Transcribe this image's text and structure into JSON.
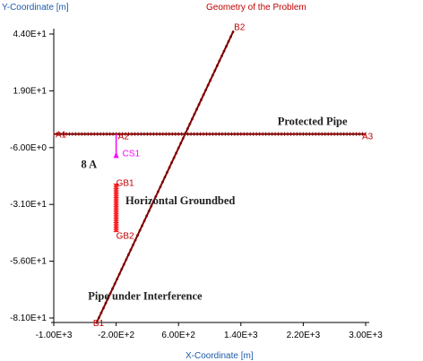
{
  "chart_data": {
    "type": "line",
    "title": "Geometry of the Problem",
    "xlabel": "X-Coordinate [m]",
    "ylabel": "Y-Coordinate [m]",
    "xlim": [
      -1000,
      3000
    ],
    "ylim": [
      -81,
      44
    ],
    "x_ticks": [
      -1000,
      -200,
      600,
      1400,
      2200,
      3000
    ],
    "x_tick_labels": [
      "-1.00E+3",
      "-2.00E+2",
      "6.00E+2",
      "1.40E+3",
      "2.20E+3",
      "3.00E+3"
    ],
    "y_ticks": [
      44,
      19,
      -6,
      -31,
      -56,
      -81
    ],
    "y_tick_labels": [
      "4.40E+1",
      "1.90E+1",
      "-6.00E+0",
      "-3.10E+1",
      "-5.60E+1",
      "-8.10E+1"
    ],
    "grid": false,
    "colors": {
      "pipe": "#800000",
      "groundbed": "#ff2020",
      "current_source": "#ff00ff",
      "text_red": "#c00000",
      "text_blue": "#1e5aa8",
      "text_dark": "#202020"
    },
    "series": [
      {
        "name": "Protected Pipe",
        "points": [
          [
            -1000,
            0
          ],
          [
            -200,
            0
          ],
          [
            3000,
            0
          ]
        ]
      },
      {
        "name": "Pipe under Interference",
        "points": [
          [
            -450,
            -83
          ],
          [
            1300,
            45
          ]
        ]
      },
      {
        "name": "Horizontal Groundbed",
        "points": [
          [
            -200,
            -22
          ],
          [
            -200,
            -43
          ]
        ]
      },
      {
        "name": "",
        "points": [
          [
            -200,
            0
          ],
          [
            -200,
            -9
          ]
        ]
      }
    ],
    "point_labels": [
      {
        "text": "A1",
        "x": -1000,
        "y": 0
      },
      {
        "text": "A2",
        "x": -200,
        "y": 0
      },
      {
        "text": "A3",
        "x": 3000,
        "y": 0
      },
      {
        "text": "B2",
        "x": 1300,
        "y": 45
      },
      {
        "text": "B1",
        "x": -450,
        "y": -83
      },
      {
        "text": "CS1",
        "x": -200,
        "y": -9
      },
      {
        "text": "GB1",
        "x": -200,
        "y": -22
      },
      {
        "text": "GB2",
        "x": -200,
        "y": -43
      }
    ],
    "annotations": [
      {
        "text": "Protected Pipe",
        "x": 1870,
        "y": 4
      },
      {
        "text": "8 A",
        "x": -650,
        "y": -15
      },
      {
        "text": "Horizontal Groundbed",
        "x": -80,
        "y": -31
      },
      {
        "text": "Pipe under Interference",
        "x": -560,
        "y": -73
      }
    ]
  }
}
